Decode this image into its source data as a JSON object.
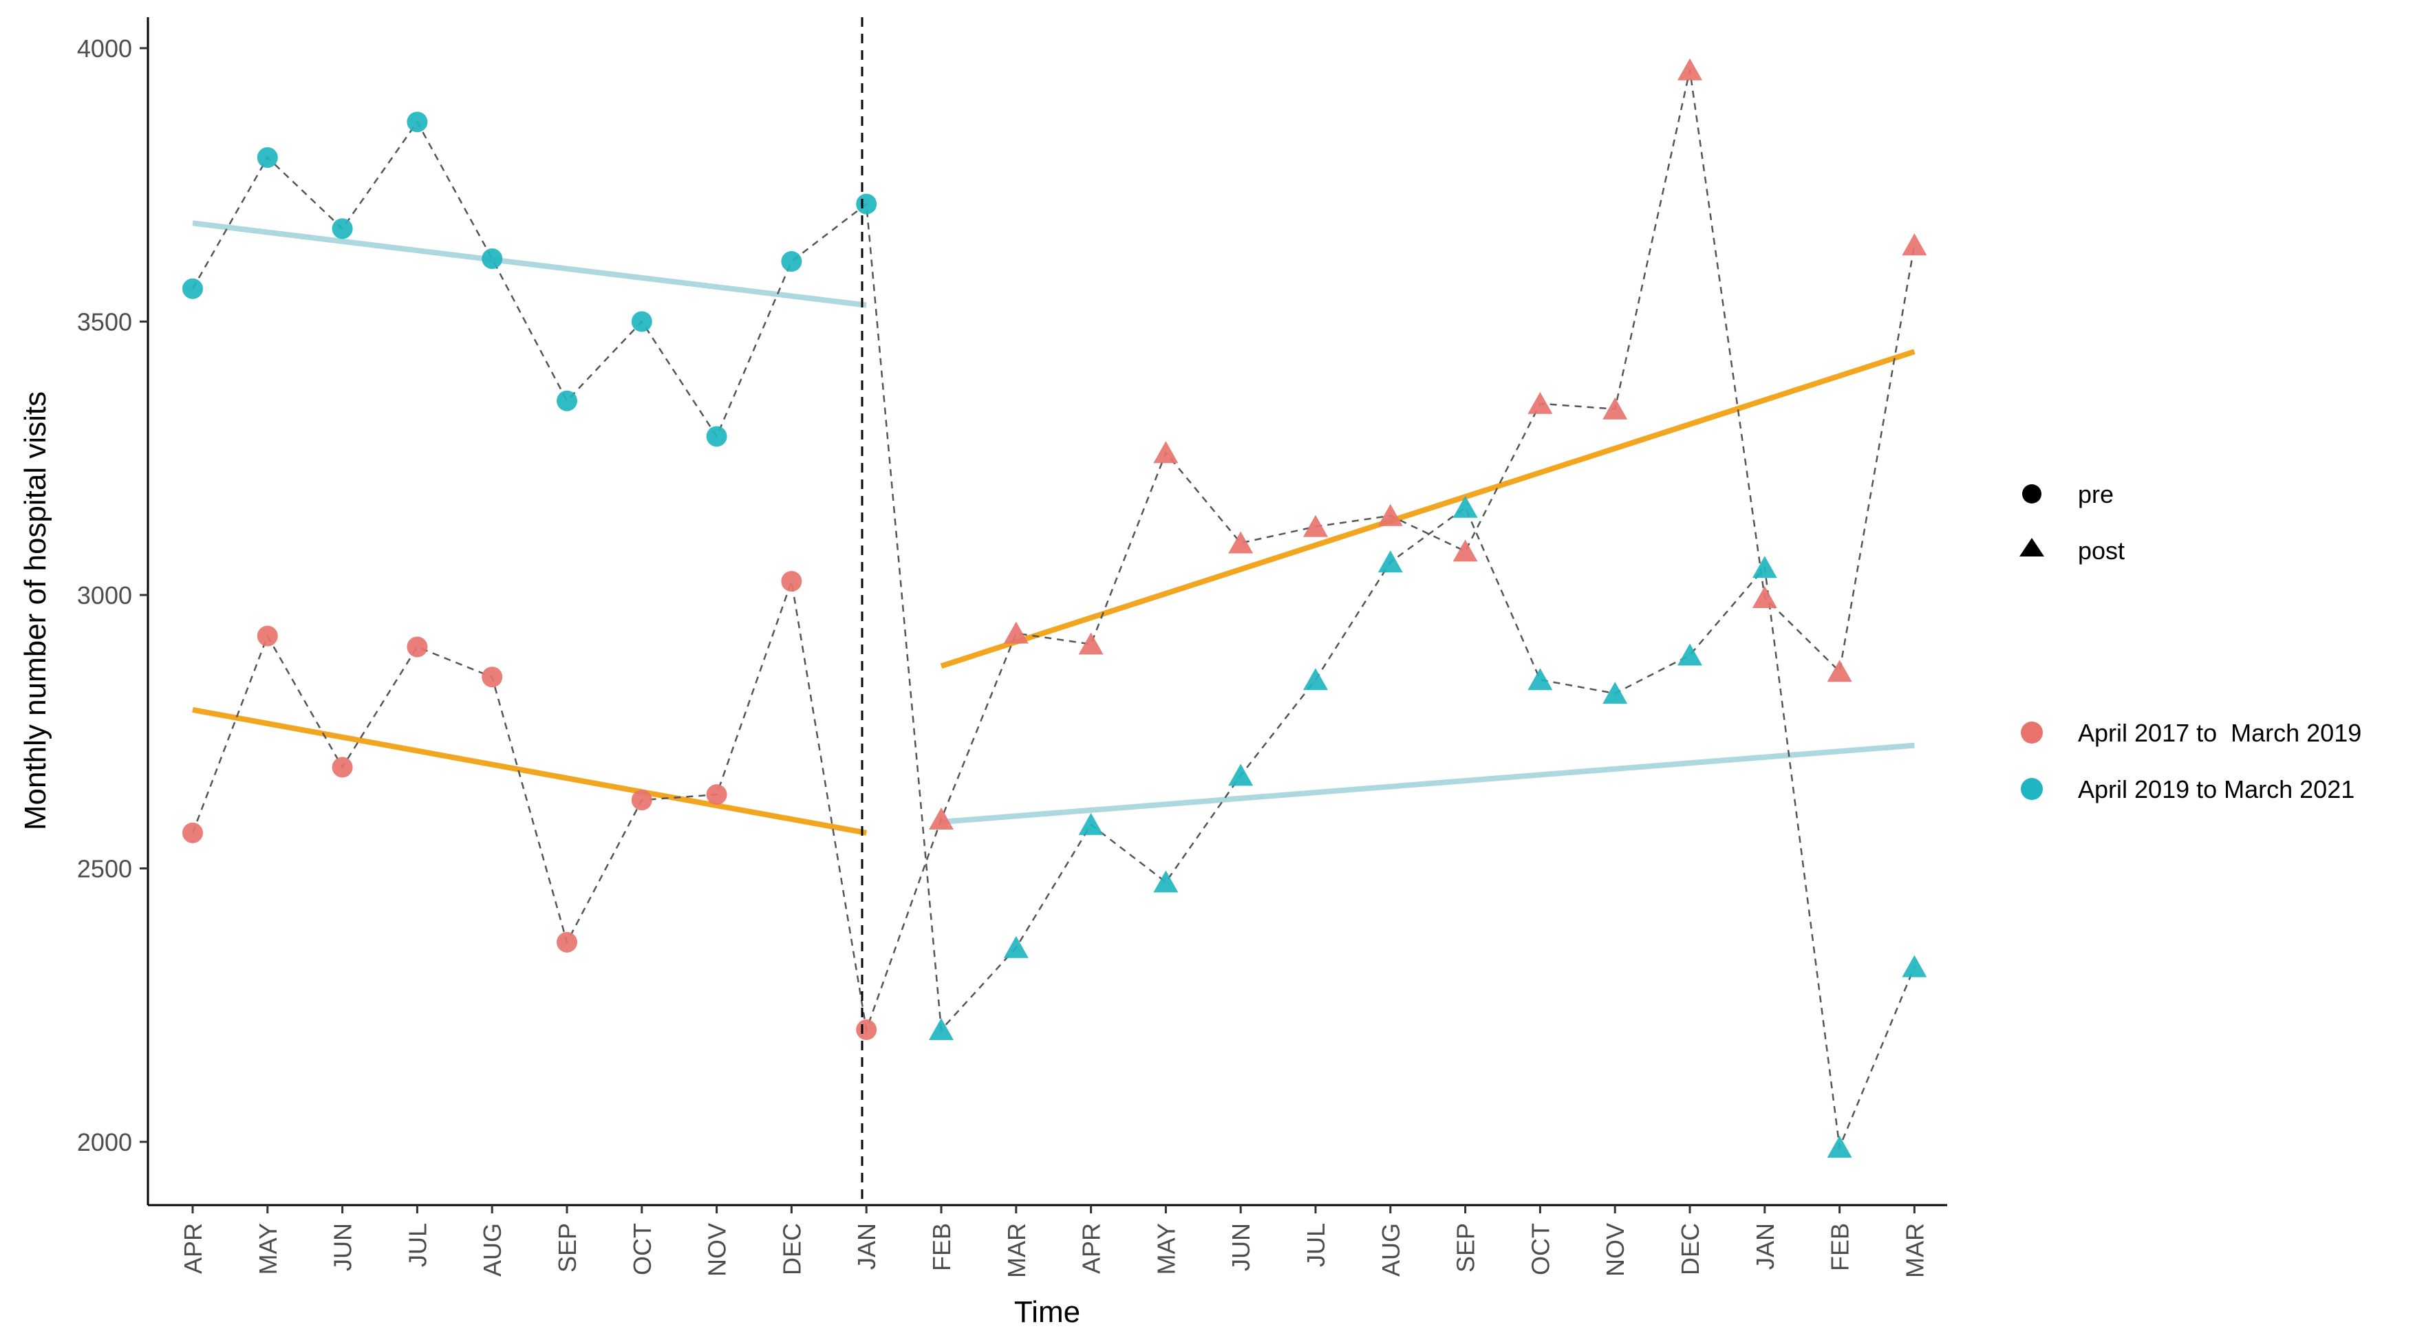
{
  "colors": {
    "cohort_2017": "#E8736C",
    "cohort_2019": "#1EB5C0",
    "trend_2017": "#F2A51F",
    "trend_2019": "#AED8E0",
    "connector": "#555555",
    "axis": "#000000"
  },
  "chart_data": {
    "type": "line",
    "title": "",
    "xlabel": "Time",
    "ylabel": "Monthly number of hospital visits",
    "ylim": [
      1900,
      4050
    ],
    "yticks": [
      2000,
      2500,
      3000,
      3500,
      4000
    ],
    "categories": [
      "APR",
      "MAY",
      "JUN",
      "JUL",
      "AUG",
      "SEP",
      "OCT",
      "NOV",
      "DEC",
      "JAN",
      "FEB",
      "MAR",
      "APR",
      "MAY",
      "JUN",
      "JUL",
      "AUG",
      "SEP",
      "OCT",
      "NOV",
      "DEC",
      "JAN",
      "FEB",
      "MAR"
    ],
    "intervention_index": 9,
    "series": [
      {
        "name": "April 2017 to  March 2019",
        "color_key": "cohort_2017",
        "pre_values": [
          2565,
          2925,
          2685,
          2905,
          2850,
          2365,
          2625,
          2635,
          3025,
          2205
        ],
        "post_values": [
          2590,
          2930,
          2910,
          3260,
          3095,
          3125,
          3145,
          3080,
          3350,
          3340,
          3960,
          2995,
          2860,
          3640
        ],
        "trend_pre": [
          2790,
          2565
        ],
        "trend_post": [
          2870,
          3445
        ]
      },
      {
        "name": "April 2019 to March 2021",
        "color_key": "cohort_2019",
        "pre_values": [
          3560,
          3800,
          3670,
          3865,
          3615,
          3355,
          3500,
          3290,
          3610,
          3715
        ],
        "post_values": [
          2205,
          2355,
          2580,
          2475,
          2670,
          2845,
          3060,
          3160,
          2845,
          2820,
          2890,
          3050,
          1990,
          2320
        ],
        "trend_pre": [
          3680,
          3530
        ],
        "trend_post": [
          2585,
          2725
        ]
      }
    ],
    "shape_legend": [
      {
        "label": "pre",
        "shape": "circle"
      },
      {
        "label": "post",
        "shape": "triangle"
      }
    ],
    "color_legend": [
      {
        "label": "April 2017 to  March 2019",
        "color_key": "cohort_2017"
      },
      {
        "label": "April 2019 to March 2021",
        "color_key": "cohort_2019"
      }
    ]
  }
}
